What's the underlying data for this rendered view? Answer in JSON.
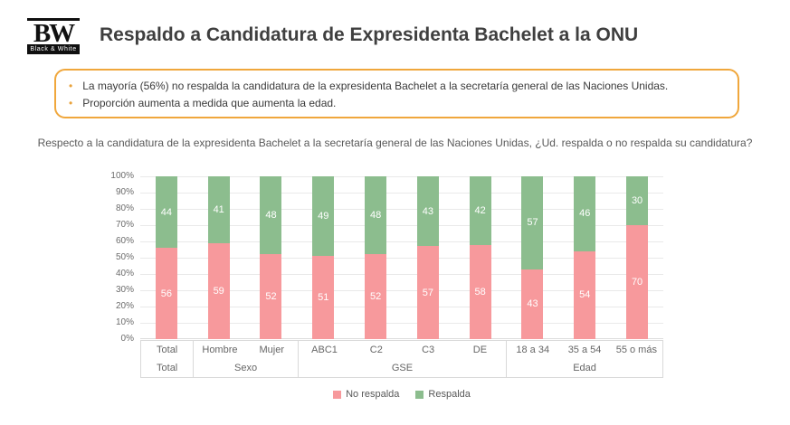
{
  "header": {
    "logo": {
      "initials": "BW",
      "subtitle": "Black & White"
    },
    "title": "Respaldo a Candidatura de Expresidenta Bachelet a la ONU"
  },
  "callout": {
    "border_color": "#F0A73C",
    "bullet_color": "#E9A23C",
    "bullets": [
      "La mayoría (56%) no respalda la candidatura de la expresidenta Bachelet a la secretaría general de las Naciones Unidas.",
      "Proporción aumenta a medida que aumenta la edad."
    ]
  },
  "chart_data": {
    "type": "bar",
    "stacked": true,
    "percent_stacked": true,
    "title": "Respecto a la candidatura de la expresidenta Bachelet a la secretaría general de las Naciones Unidas, ¿Ud. respalda o no respalda su candidatura?",
    "categories": [
      "Total",
      "Hombre",
      "Mujer",
      "ABC1",
      "C2",
      "C3",
      "DE",
      "18 a 34",
      "35 a 54",
      "55 o más"
    ],
    "groups": [
      {
        "label": "Total",
        "span": 1
      },
      {
        "label": "Sexo",
        "span": 2
      },
      {
        "label": "GSE",
        "span": 4
      },
      {
        "label": "Edad",
        "span": 3
      }
    ],
    "series": [
      {
        "name": "No respalda",
        "color": "#F7999C",
        "values": [
          56,
          59,
          52,
          51,
          52,
          57,
          58,
          43,
          54,
          70
        ]
      },
      {
        "name": "Respalda",
        "color": "#8CBD8E",
        "values": [
          44,
          41,
          48,
          49,
          48,
          43,
          42,
          57,
          46,
          30
        ]
      }
    ],
    "xlabel": "",
    "ylabel": "",
    "ylim": [
      0,
      100
    ],
    "y_ticks": [
      "0%",
      "10%",
      "20%",
      "30%",
      "40%",
      "50%",
      "60%",
      "70%",
      "80%",
      "90%",
      "100%"
    ],
    "grid": true,
    "gridline_color": "#E9E9E9",
    "data_label_color": "#FFFFFF",
    "axis_text_color": "#666666",
    "legend_position": "bottom"
  }
}
